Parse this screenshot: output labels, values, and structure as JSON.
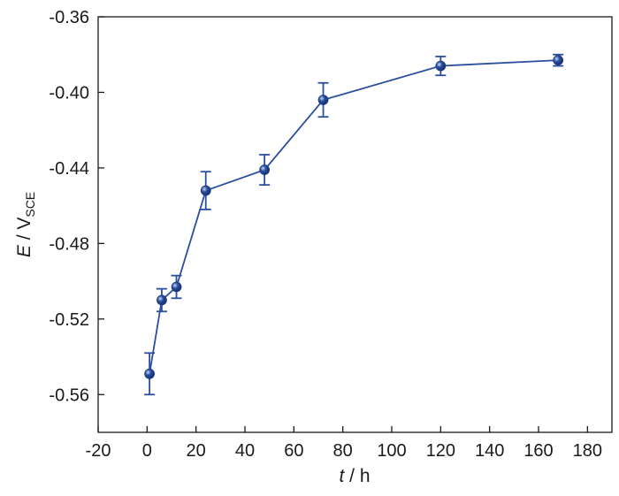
{
  "chart_data": {
    "type": "line",
    "title": "",
    "xlabel": {
      "symbol": "t",
      "unit": " / h"
    },
    "ylabel": {
      "symbol": "E",
      "unit": " / V",
      "subscript": "SCE"
    },
    "xlim": [
      -20,
      190
    ],
    "ylim": [
      -0.58,
      -0.36
    ],
    "xticks": [
      -20,
      0,
      20,
      40,
      60,
      80,
      100,
      120,
      140,
      160,
      180
    ],
    "xtick_labels": [
      "-20",
      "0",
      "20",
      "40",
      "60",
      "80",
      "100",
      "120",
      "140",
      "160",
      "180"
    ],
    "yticks": [
      -0.56,
      -0.52,
      -0.48,
      -0.44,
      -0.4,
      -0.36
    ],
    "ytick_labels": [
      "-0.56",
      "-0.52",
      "-0.48",
      "-0.44",
      "-0.40",
      "-0.36"
    ],
    "grid": false,
    "legend": "none",
    "series": [
      {
        "color": "#2b4f9e",
        "x": [
          1,
          6,
          12,
          24,
          48,
          72,
          120,
          168
        ],
        "y": [
          -0.549,
          -0.51,
          -0.503,
          -0.452,
          -0.441,
          -0.404,
          -0.386,
          -0.383
        ],
        "y_err": [
          0.011,
          0.006,
          0.006,
          0.01,
          0.008,
          0.009,
          0.005,
          0.003
        ]
      }
    ]
  }
}
